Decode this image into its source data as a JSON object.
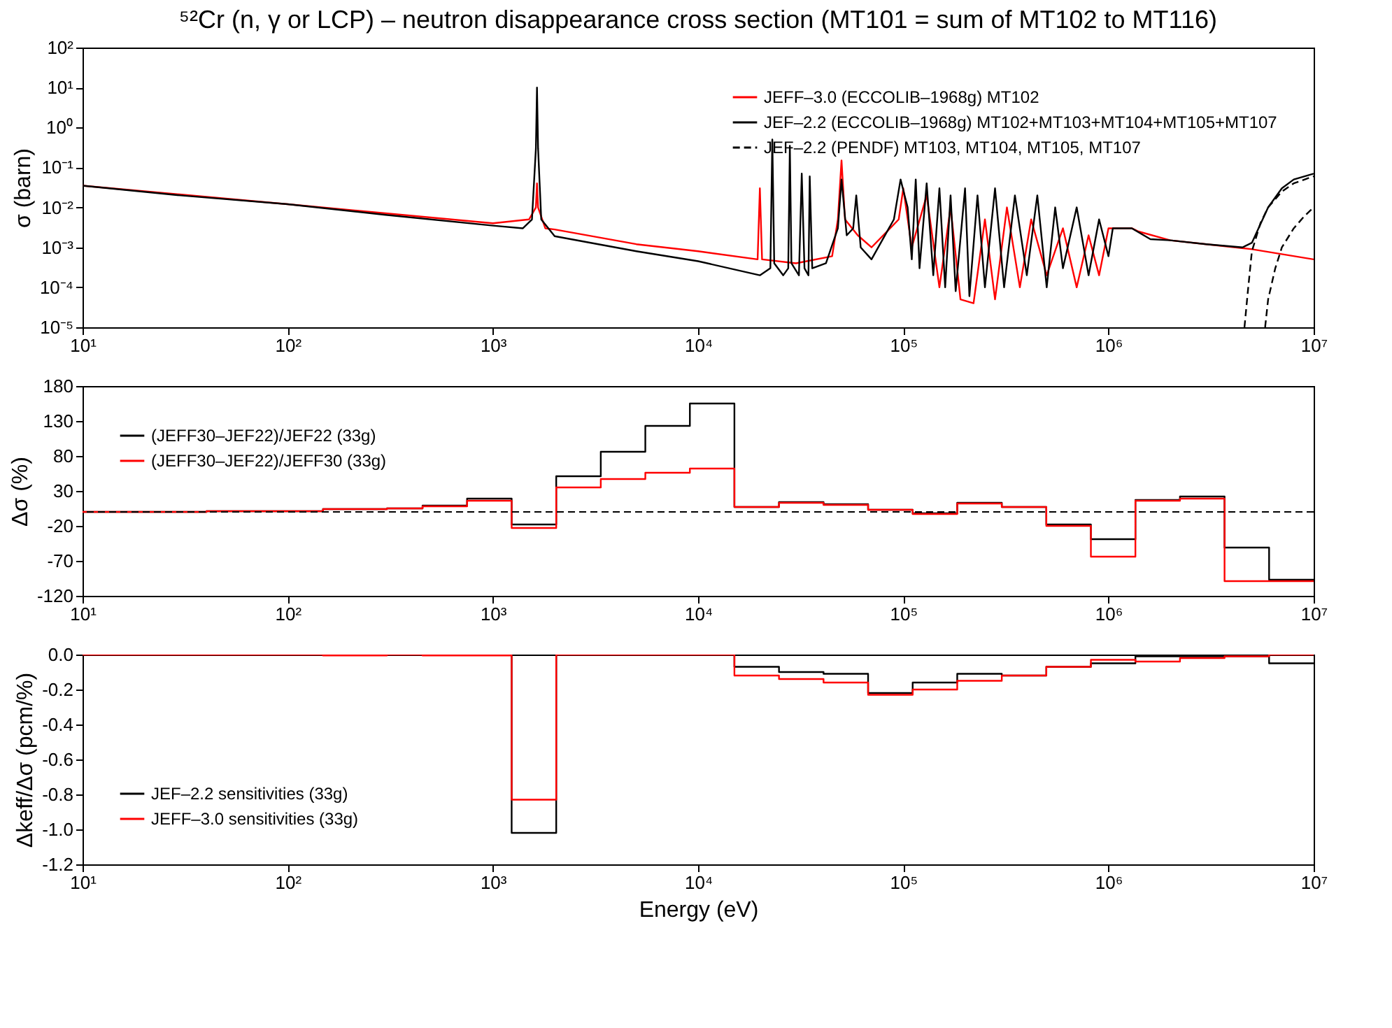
{
  "chart_data": [
    {
      "type": "line",
      "title": "⁵²Cr (n, γ or LCP) – neutron disappearance cross section (MT101 = sum of MT102 to MT116)",
      "ylabel": "σ (barn)",
      "log": "xy",
      "legend": "top right",
      "xlim": [
        10,
        10000000
      ],
      "xticks": [
        {
          "value": 10,
          "label": "10¹"
        },
        {
          "value": 100,
          "label": "10²"
        },
        {
          "value": 1000,
          "label": "10³"
        },
        {
          "value": 10000,
          "label": "10⁴"
        },
        {
          "value": 100000,
          "label": "10⁵"
        },
        {
          "value": 1000000,
          "label": "10⁶"
        },
        {
          "value": 10000000,
          "label": "10⁷"
        }
      ],
      "ylim": [
        1e-05,
        100
      ],
      "yticks": [
        {
          "value": 1e-05,
          "label": "10⁻⁵"
        },
        {
          "value": 0.0001,
          "label": "10⁻⁴"
        },
        {
          "value": 0.001,
          "label": "10⁻³"
        },
        {
          "value": 0.01,
          "label": "10⁻²"
        },
        {
          "value": 0.1,
          "label": "10⁻¹"
        },
        {
          "value": 1,
          "label": "10⁰"
        },
        {
          "value": 10,
          "label": "10¹"
        },
        {
          "value": 100,
          "label": "10²"
        }
      ],
      "series": [
        {
          "name": "JEFF–3.0 (ECCOLIB–1968g) MT102",
          "color": "#ff0000",
          "line_style": "solid",
          "x": [
            10,
            100,
            1000,
            1500,
            1620,
            1640,
            1660,
            1800,
            2000,
            5000,
            10000,
            19500,
            20000,
            20500,
            30000,
            45000,
            48000,
            50000,
            52000,
            60000,
            70000,
            95000,
            100000,
            110000,
            130000,
            150000,
            170000,
            190000,
            220000,
            250000,
            280000,
            320000,
            370000,
            420000,
            500000,
            600000,
            700000,
            800000,
            900000,
            1000000,
            1300000,
            1400000,
            2000000,
            3000000,
            5000000,
            10000000
          ],
          "values": [
            0.035,
            0.012,
            0.004,
            0.005,
            0.01,
            0.04,
            0.01,
            0.003,
            0.0028,
            0.0012,
            0.0008,
            0.0005,
            0.03,
            0.0005,
            0.0004,
            0.0006,
            0.005,
            0.15,
            0.005,
            0.002,
            0.001,
            0.005,
            0.03,
            0.001,
            0.02,
            0.0001,
            0.01,
            5e-05,
            4e-05,
            0.005,
            5e-05,
            0.01,
            0.0001,
            0.005,
            0.0002,
            0.003,
            0.0001,
            0.002,
            0.0002,
            0.003,
            0.003,
            0.0025,
            0.0015,
            0.0012,
            0.0009,
            0.0005
          ]
        },
        {
          "name": "JEF–2.2 (ECCOLIB–1968g) MT102+MT103+MT104+MT105+MT107",
          "color": "#000000",
          "line_style": "solid",
          "x": [
            10,
            30,
            100,
            300,
            1000,
            1400,
            1550,
            1620,
            1640,
            1660,
            1720,
            2000,
            5000,
            10000,
            20000,
            22500,
            23000,
            23500,
            26000,
            27500,
            28000,
            28500,
            31000,
            32000,
            33000,
            34500,
            35000,
            36000,
            42000,
            48000,
            50000,
            53000,
            57000,
            59000,
            62000,
            70000,
            90000,
            97000,
            105000,
            110000,
            115000,
            120000,
            130000,
            140000,
            150000,
            160000,
            170000,
            180000,
            200000,
            210000,
            230000,
            250000,
            280000,
            310000,
            350000,
            400000,
            450000,
            500000,
            550000,
            600000,
            700000,
            800000,
            900000,
            1000000,
            1050000,
            1300000,
            1600000,
            2000000,
            3000000,
            4500000,
            5000000,
            6000000,
            7000000,
            8000000,
            10000000
          ],
          "values": [
            0.035,
            0.02,
            0.012,
            0.0065,
            0.0035,
            0.003,
            0.005,
            0.3,
            10,
            0.3,
            0.005,
            0.0019,
            0.0008,
            0.00045,
            0.0002,
            0.0003,
            0.5,
            0.0004,
            0.0002,
            0.0003,
            0.35,
            0.0004,
            0.0002,
            0.07,
            0.0003,
            0.0002,
            0.06,
            0.0003,
            0.0004,
            0.003,
            0.05,
            0.002,
            0.003,
            0.02,
            0.001,
            0.0005,
            0.005,
            0.05,
            0.01,
            0.0005,
            0.05,
            0.0003,
            0.04,
            0.0002,
            0.03,
            0.0001,
            0.02,
            8e-05,
            0.03,
            6e-05,
            0.02,
            0.0001,
            0.03,
            0.0001,
            0.02,
            0.0002,
            0.02,
            0.0001,
            0.01,
            0.0003,
            0.01,
            0.0002,
            0.005,
            0.0006,
            0.003,
            0.003,
            0.0016,
            0.0015,
            0.0012,
            0.001,
            0.0013,
            0.01,
            0.03,
            0.05,
            0.07
          ]
        },
        {
          "name": "JEF–2.2 (PENDF) MT103, MT104, MT105, MT107",
          "color": "#000000",
          "line_style": "dashed",
          "x": [
            4600000,
            4800000,
            5000000,
            5500000,
            6000000,
            7000000,
            8000000,
            10000000
          ],
          "values": [
            1e-05,
            0.0001,
            0.0008,
            0.004,
            0.01,
            0.025,
            0.04,
            0.06
          ]
        },
        {
          "color": "#000000",
          "line_style": "dashed",
          "x": [
            5800000,
            6000000,
            6500000,
            7000000,
            8000000,
            9000000,
            10000000
          ],
          "values": [
            1e-05,
            5e-05,
            0.0003,
            0.001,
            0.003,
            0.006,
            0.01
          ]
        }
      ]
    },
    {
      "type": "step",
      "ylabel": "Δσ (%)",
      "log": "x",
      "legend": "top left",
      "xlim": [
        10,
        10000000
      ],
      "xticks": [
        {
          "value": 10,
          "label": "10¹"
        },
        {
          "value": 100,
          "label": "10²"
        },
        {
          "value": 1000,
          "label": "10³"
        },
        {
          "value": 10000,
          "label": "10⁴"
        },
        {
          "value": 100000,
          "label": "10⁵"
        },
        {
          "value": 1000000,
          "label": "10⁶"
        },
        {
          "value": 10000000,
          "label": "10⁷"
        }
      ],
      "ylim": [
        -120,
        180
      ],
      "yticks": [
        -120,
        -70,
        -20,
        30,
        80,
        130,
        180
      ],
      "x": [
        10,
        40.17,
        148.6,
        304.3,
        454,
        748.5,
        1234,
        2035,
        3355,
        5531,
        9119,
        15030,
        24790,
        40870,
        67380,
        111100,
        183200,
        302000,
        497900,
        821000,
        1353000,
        2231000,
        3679000,
        6065000,
        10000000
      ],
      "ref_lines": [
        {
          "axis": "y",
          "value": 0,
          "color": "#000000",
          "line_style": "dashed"
        }
      ],
      "series": [
        {
          "name": "(JEFF30–JEF22)/JEF22 (33g)",
          "color": "#000000",
          "values": [
            0,
            1,
            4,
            5,
            9,
            19,
            -18,
            51,
            86,
            123,
            155,
            7,
            14,
            11,
            3,
            -2,
            13,
            7,
            -18,
            -39,
            17,
            22,
            -51,
            -97,
            -97
          ],
          "line_style": "solid"
        },
        {
          "name": "(JEFF30–JEF22)/JEFF30 (33g)",
          "color": "#ff0000",
          "values": [
            0,
            1,
            4,
            5,
            8,
            16,
            -23,
            35,
            47,
            56,
            62,
            7,
            13,
            10,
            3,
            -3,
            12,
            7,
            -20,
            -64,
            16,
            19,
            -99,
            -99,
            -99
          ],
          "line_style": "solid"
        }
      ]
    },
    {
      "type": "step",
      "xlabel": "Energy (eV)",
      "ylabel": "Δkeff/Δσ (pcm/%)",
      "log": "x",
      "legend": "bottom left",
      "xlim": [
        10,
        10000000
      ],
      "xticks": [
        {
          "value": 10,
          "label": "10¹"
        },
        {
          "value": 100,
          "label": "10²"
        },
        {
          "value": 1000,
          "label": "10³"
        },
        {
          "value": 10000,
          "label": "10⁴"
        },
        {
          "value": 100000,
          "label": "10⁵"
        },
        {
          "value": 1000000,
          "label": "10⁶"
        },
        {
          "value": 10000000,
          "label": "10⁷"
        }
      ],
      "ylim": [
        -1.2,
        0
      ],
      "yticks": [
        {
          "value": -1.2,
          "label": "-1.2"
        },
        {
          "value": -1.0,
          "label": "-1.0"
        },
        {
          "value": -0.8,
          "label": "-0.8"
        },
        {
          "value": -0.6,
          "label": "-0.6"
        },
        {
          "value": -0.4,
          "label": "-0.4"
        },
        {
          "value": -0.2,
          "label": "-0.2"
        },
        {
          "value": 0,
          "label": "0.0"
        }
      ],
      "x": [
        10,
        40.17,
        148.6,
        304.3,
        454,
        748.5,
        1234,
        2035,
        3355,
        5531,
        9119,
        15030,
        24790,
        40870,
        67380,
        111100,
        183200,
        302000,
        497900,
        821000,
        1353000,
        2231000,
        3679000,
        6065000,
        10000000
      ],
      "series": [
        {
          "name": "JEF–2.2 sensitivities (33g)",
          "color": "#000000",
          "values": [
            0,
            0,
            0,
            0,
            0,
            0,
            -1.02,
            0,
            0,
            0,
            0,
            -0.07,
            -0.1,
            -0.11,
            -0.22,
            -0.16,
            -0.11,
            -0.12,
            -0.07,
            -0.05,
            -0.01,
            -0.01,
            -0.01,
            -0.05,
            -0.05
          ],
          "line_style": "solid"
        },
        {
          "name": "JEFF–3.0 sensitivities (33g)",
          "color": "#ff0000",
          "values": [
            0,
            0,
            -0.005,
            0,
            -0.005,
            -0.005,
            -0.83,
            0,
            0,
            0,
            0,
            -0.12,
            -0.14,
            -0.16,
            -0.23,
            -0.2,
            -0.15,
            -0.12,
            -0.07,
            -0.03,
            -0.04,
            -0.02,
            -0.01,
            0,
            0
          ],
          "line_style": "solid"
        }
      ]
    }
  ]
}
